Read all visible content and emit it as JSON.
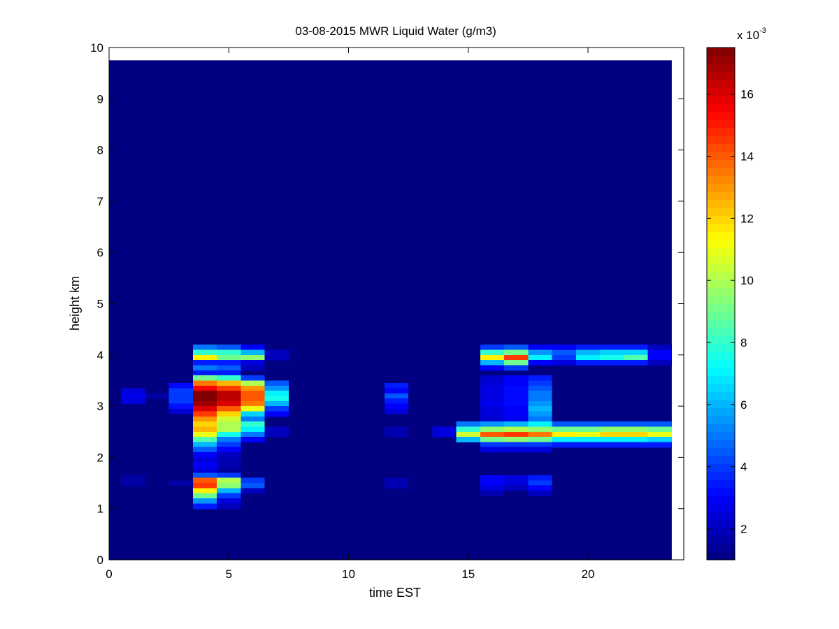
{
  "chart_data": {
    "type": "heatmap",
    "title": "03-08-2015 MWR Liquid Water (g/m3)",
    "xlabel": "time EST",
    "ylabel": "height km",
    "xlim": [
      0,
      24
    ],
    "ylim": [
      0,
      10
    ],
    "x_ticks": [
      0,
      5,
      10,
      15,
      20
    ],
    "y_ticks": [
      0,
      1,
      2,
      3,
      4,
      5,
      6,
      7,
      8,
      9,
      10
    ],
    "data_extent": {
      "x": [
        0,
        23.5
      ],
      "y": [
        0,
        9.75
      ]
    },
    "cell_width": 1,
    "colormap": "jet",
    "colorbar": {
      "min": 1,
      "max": 17.5,
      "exponent_label": "x 10",
      "exponent_power": "-3",
      "ticks": [
        2,
        4,
        6,
        8,
        10,
        12,
        14,
        16
      ]
    },
    "background_value": 1,
    "cells": [
      {
        "t": 1,
        "h": 3.3,
        "v": 2.5
      },
      {
        "t": 1,
        "h": 3.2,
        "v": 2.8
      },
      {
        "t": 1,
        "h": 3.1,
        "v": 2.5
      },
      {
        "t": 2,
        "h": 3.2,
        "v": 1.6
      },
      {
        "t": 3,
        "h": 3.4,
        "v": 3.2
      },
      {
        "t": 3,
        "h": 3.3,
        "v": 4.0
      },
      {
        "t": 3,
        "h": 3.2,
        "v": 4.0
      },
      {
        "t": 3,
        "h": 3.1,
        "v": 4.0
      },
      {
        "t": 3,
        "h": 3.0,
        "v": 3.3
      },
      {
        "t": 3,
        "h": 2.9,
        "v": 2.3
      },
      {
        "t": 1,
        "h": 1.6,
        "v": 1.6
      },
      {
        "t": 1,
        "h": 1.5,
        "v": 1.6
      },
      {
        "t": 3,
        "h": 1.5,
        "v": 1.6
      },
      {
        "t": 4,
        "h": 4.15,
        "v": 5.0
      },
      {
        "t": 4,
        "h": 4.05,
        "v": 8.0
      },
      {
        "t": 4,
        "h": 3.95,
        "v": 11.5
      },
      {
        "t": 4,
        "h": 3.85,
        "v": 3.5
      },
      {
        "t": 4,
        "h": 3.75,
        "v": 5.0
      },
      {
        "t": 4,
        "h": 3.65,
        "v": 3.5
      },
      {
        "t": 4,
        "h": 3.55,
        "v": 9.0
      },
      {
        "t": 4,
        "h": 3.45,
        "v": 13.5
      },
      {
        "t": 4,
        "h": 3.35,
        "v": 15.5
      },
      {
        "t": 4,
        "h": 3.25,
        "v": 17.5
      },
      {
        "t": 4,
        "h": 3.15,
        "v": 17.5
      },
      {
        "t": 4,
        "h": 3.05,
        "v": 17.0
      },
      {
        "t": 4,
        "h": 2.95,
        "v": 16.0
      },
      {
        "t": 4,
        "h": 2.85,
        "v": 14.5
      },
      {
        "t": 4,
        "h": 2.75,
        "v": 13.0
      },
      {
        "t": 4,
        "h": 2.65,
        "v": 12.0
      },
      {
        "t": 4,
        "h": 2.55,
        "v": 12.5
      },
      {
        "t": 4,
        "h": 2.45,
        "v": 11.0
      },
      {
        "t": 4,
        "h": 2.35,
        "v": 8.5
      },
      {
        "t": 4,
        "h": 2.25,
        "v": 6.0
      },
      {
        "t": 4,
        "h": 2.15,
        "v": 4.5
      },
      {
        "t": 4,
        "h": 2.05,
        "v": 3.0
      },
      {
        "t": 4,
        "h": 1.95,
        "v": 2.5
      },
      {
        "t": 4,
        "h": 1.85,
        "v": 3.0
      },
      {
        "t": 4,
        "h": 1.75,
        "v": 2.5
      },
      {
        "t": 4,
        "h": 1.65,
        "v": 4.5
      },
      {
        "t": 4,
        "h": 1.55,
        "v": 14.0
      },
      {
        "t": 4,
        "h": 1.45,
        "v": 14.5
      },
      {
        "t": 4,
        "h": 1.35,
        "v": 11.5
      },
      {
        "t": 4,
        "h": 1.25,
        "v": 9.0
      },
      {
        "t": 4,
        "h": 1.15,
        "v": 5.5
      },
      {
        "t": 4,
        "h": 1.05,
        "v": 3.5
      },
      {
        "t": 5,
        "h": 4.15,
        "v": 4.5
      },
      {
        "t": 5,
        "h": 4.05,
        "v": 8.0
      },
      {
        "t": 5,
        "h": 3.95,
        "v": 9.0
      },
      {
        "t": 5,
        "h": 3.85,
        "v": 3.5
      },
      {
        "t": 5,
        "h": 3.75,
        "v": 4.5
      },
      {
        "t": 5,
        "h": 3.65,
        "v": 3.5
      },
      {
        "t": 5,
        "h": 3.55,
        "v": 8.0
      },
      {
        "t": 5,
        "h": 3.45,
        "v": 12.5
      },
      {
        "t": 5,
        "h": 3.35,
        "v": 14.5
      },
      {
        "t": 5,
        "h": 3.25,
        "v": 16.5
      },
      {
        "t": 5,
        "h": 3.15,
        "v": 16.5
      },
      {
        "t": 5,
        "h": 3.05,
        "v": 16.0
      },
      {
        "t": 5,
        "h": 2.95,
        "v": 14.0
      },
      {
        "t": 5,
        "h": 2.85,
        "v": 12.0
      },
      {
        "t": 5,
        "h": 2.75,
        "v": 10.5
      },
      {
        "t": 5,
        "h": 2.65,
        "v": 10.0
      },
      {
        "t": 5,
        "h": 2.55,
        "v": 10.0
      },
      {
        "t": 5,
        "h": 2.45,
        "v": 7.5
      },
      {
        "t": 5,
        "h": 2.35,
        "v": 5.0
      },
      {
        "t": 5,
        "h": 2.25,
        "v": 4.0
      },
      {
        "t": 5,
        "h": 2.15,
        "v": 3.0
      },
      {
        "t": 5,
        "h": 2.05,
        "v": 2.0
      },
      {
        "t": 5,
        "h": 1.95,
        "v": 1.8
      },
      {
        "t": 5,
        "h": 1.85,
        "v": 1.8
      },
      {
        "t": 5,
        "h": 1.75,
        "v": 1.5
      },
      {
        "t": 5,
        "h": 1.65,
        "v": 4.0
      },
      {
        "t": 5,
        "h": 1.55,
        "v": 10.0
      },
      {
        "t": 5,
        "h": 1.45,
        "v": 9.5
      },
      {
        "t": 5,
        "h": 1.35,
        "v": 6.0
      },
      {
        "t": 5,
        "h": 1.25,
        "v": 4.0
      },
      {
        "t": 5,
        "h": 1.15,
        "v": 2.5
      },
      {
        "t": 5,
        "h": 1.05,
        "v": 2.0
      },
      {
        "t": 6,
        "h": 4.15,
        "v": 3.0
      },
      {
        "t": 6,
        "h": 4.05,
        "v": 6.0
      },
      {
        "t": 6,
        "h": 3.95,
        "v": 9.5
      },
      {
        "t": 6,
        "h": 3.85,
        "v": 2.5
      },
      {
        "t": 6,
        "h": 3.75,
        "v": 2.0
      },
      {
        "t": 6,
        "h": 3.55,
        "v": 4.0
      },
      {
        "t": 6,
        "h": 3.45,
        "v": 10.0
      },
      {
        "t": 6,
        "h": 3.35,
        "v": 13.0
      },
      {
        "t": 6,
        "h": 3.25,
        "v": 14.0
      },
      {
        "t": 6,
        "h": 3.15,
        "v": 14.0
      },
      {
        "t": 6,
        "h": 3.05,
        "v": 13.5
      },
      {
        "t": 6,
        "h": 2.95,
        "v": 11.0
      },
      {
        "t": 6,
        "h": 2.85,
        "v": 6.5
      },
      {
        "t": 6,
        "h": 2.75,
        "v": 5.0
      },
      {
        "t": 6,
        "h": 2.65,
        "v": 8.0
      },
      {
        "t": 6,
        "h": 2.55,
        "v": 7.0
      },
      {
        "t": 6,
        "h": 2.45,
        "v": 5.0
      },
      {
        "t": 6,
        "h": 2.35,
        "v": 3.0
      },
      {
        "t": 6,
        "h": 1.55,
        "v": 4.0
      },
      {
        "t": 6,
        "h": 1.45,
        "v": 4.5
      },
      {
        "t": 6,
        "h": 1.35,
        "v": 2.0
      },
      {
        "t": 7,
        "h": 4.05,
        "v": 2.0
      },
      {
        "t": 7,
        "h": 3.95,
        "v": 2.0
      },
      {
        "t": 7,
        "h": 3.45,
        "v": 4.5
      },
      {
        "t": 7,
        "h": 3.35,
        "v": 5.5
      },
      {
        "t": 7,
        "h": 3.25,
        "v": 7.0
      },
      {
        "t": 7,
        "h": 3.15,
        "v": 7.5
      },
      {
        "t": 7,
        "h": 3.05,
        "v": 6.0
      },
      {
        "t": 7,
        "h": 2.95,
        "v": 4.0
      },
      {
        "t": 7,
        "h": 2.85,
        "v": 3.0
      },
      {
        "t": 7,
        "h": 2.55,
        "v": 2.0
      },
      {
        "t": 7,
        "h": 2.45,
        "v": 2.0
      },
      {
        "t": 12,
        "h": 3.4,
        "v": 3.5
      },
      {
        "t": 12,
        "h": 3.3,
        "v": 3.0
      },
      {
        "t": 12,
        "h": 3.2,
        "v": 4.5
      },
      {
        "t": 12,
        "h": 3.1,
        "v": 3.5
      },
      {
        "t": 12,
        "h": 3.0,
        "v": 3.0
      },
      {
        "t": 12,
        "h": 2.9,
        "v": 2.5
      },
      {
        "t": 12,
        "h": 2.55,
        "v": 1.8
      },
      {
        "t": 12,
        "h": 2.45,
        "v": 1.8
      },
      {
        "t": 12,
        "h": 1.55,
        "v": 1.8
      },
      {
        "t": 12,
        "h": 1.45,
        "v": 1.8
      },
      {
        "t": 14,
        "h": 2.55,
        "v": 2.5
      },
      {
        "t": 14,
        "h": 2.45,
        "v": 2.5
      },
      {
        "t": 15,
        "h": 2.65,
        "v": 5.0
      },
      {
        "t": 15,
        "h": 2.55,
        "v": 8.0
      },
      {
        "t": 15,
        "h": 2.45,
        "v": 10.5
      },
      {
        "t": 15,
        "h": 2.35,
        "v": 6.0
      },
      {
        "t": 16,
        "h": 4.15,
        "v": 4.0
      },
      {
        "t": 16,
        "h": 4.05,
        "v": 8.0
      },
      {
        "t": 16,
        "h": 3.95,
        "v": 11.5
      },
      {
        "t": 16,
        "h": 3.85,
        "v": 6.0
      },
      {
        "t": 16,
        "h": 3.75,
        "v": 3.0
      },
      {
        "t": 16,
        "h": 3.55,
        "v": 2.2
      },
      {
        "t": 16,
        "h": 3.45,
        "v": 2.4
      },
      {
        "t": 16,
        "h": 3.35,
        "v": 2.6
      },
      {
        "t": 16,
        "h": 3.25,
        "v": 2.6
      },
      {
        "t": 16,
        "h": 3.15,
        "v": 2.6
      },
      {
        "t": 16,
        "h": 3.05,
        "v": 2.8
      },
      {
        "t": 16,
        "h": 2.95,
        "v": 2.5
      },
      {
        "t": 16,
        "h": 2.85,
        "v": 2.5
      },
      {
        "t": 16,
        "h": 2.75,
        "v": 2.3
      },
      {
        "t": 16,
        "h": 2.65,
        "v": 5.5
      },
      {
        "t": 16,
        "h": 2.55,
        "v": 9.5
      },
      {
        "t": 16,
        "h": 2.45,
        "v": 14.0
      },
      {
        "t": 16,
        "h": 2.35,
        "v": 9.0
      },
      {
        "t": 16,
        "h": 2.25,
        "v": 4.0
      },
      {
        "t": 16,
        "h": 2.15,
        "v": 2.5
      },
      {
        "t": 16,
        "h": 1.6,
        "v": 3.0
      },
      {
        "t": 16,
        "h": 1.5,
        "v": 3.0
      },
      {
        "t": 16,
        "h": 1.4,
        "v": 2.5
      },
      {
        "t": 16,
        "h": 1.3,
        "v": 1.8
      },
      {
        "t": 17,
        "h": 4.15,
        "v": 4.5
      },
      {
        "t": 17,
        "h": 4.05,
        "v": 9.0
      },
      {
        "t": 17,
        "h": 3.95,
        "v": 14.5
      },
      {
        "t": 17,
        "h": 3.85,
        "v": 9.0
      },
      {
        "t": 17,
        "h": 3.75,
        "v": 4.0
      },
      {
        "t": 17,
        "h": 3.55,
        "v": 3.0
      },
      {
        "t": 17,
        "h": 3.45,
        "v": 3.0
      },
      {
        "t": 17,
        "h": 3.35,
        "v": 3.2
      },
      {
        "t": 17,
        "h": 3.25,
        "v": 3.2
      },
      {
        "t": 17,
        "h": 3.15,
        "v": 3.2
      },
      {
        "t": 17,
        "h": 3.05,
        "v": 3.2
      },
      {
        "t": 17,
        "h": 2.95,
        "v": 3.0
      },
      {
        "t": 17,
        "h": 2.85,
        "v": 3.0
      },
      {
        "t": 17,
        "h": 2.75,
        "v": 2.8
      },
      {
        "t": 17,
        "h": 2.65,
        "v": 6.0
      },
      {
        "t": 17,
        "h": 2.55,
        "v": 10.0
      },
      {
        "t": 17,
        "h": 2.45,
        "v": 14.5
      },
      {
        "t": 17,
        "h": 2.35,
        "v": 9.5
      },
      {
        "t": 17,
        "h": 2.25,
        "v": 4.0
      },
      {
        "t": 17,
        "h": 2.15,
        "v": 2.5
      },
      {
        "t": 17,
        "h": 1.6,
        "v": 2.5
      },
      {
        "t": 17,
        "h": 1.5,
        "v": 2.5
      },
      {
        "t": 17,
        "h": 1.4,
        "v": 2.0
      },
      {
        "t": 18,
        "h": 4.15,
        "v": 3.0
      },
      {
        "t": 18,
        "h": 4.05,
        "v": 5.5
      },
      {
        "t": 18,
        "h": 3.95,
        "v": 7.0
      },
      {
        "t": 18,
        "h": 3.85,
        "v": 3.0
      },
      {
        "t": 18,
        "h": 3.55,
        "v": 3.5
      },
      {
        "t": 18,
        "h": 3.45,
        "v": 4.0
      },
      {
        "t": 18,
        "h": 3.35,
        "v": 4.5
      },
      {
        "t": 18,
        "h": 3.25,
        "v": 5.0
      },
      {
        "t": 18,
        "h": 3.15,
        "v": 5.0
      },
      {
        "t": 18,
        "h": 3.05,
        "v": 5.5
      },
      {
        "t": 18,
        "h": 2.95,
        "v": 6.0
      },
      {
        "t": 18,
        "h": 2.85,
        "v": 5.5
      },
      {
        "t": 18,
        "h": 2.75,
        "v": 5.0
      },
      {
        "t": 18,
        "h": 2.65,
        "v": 7.0
      },
      {
        "t": 18,
        "h": 2.55,
        "v": 9.5
      },
      {
        "t": 18,
        "h": 2.45,
        "v": 13.5
      },
      {
        "t": 18,
        "h": 2.35,
        "v": 9.0
      },
      {
        "t": 18,
        "h": 2.25,
        "v": 4.0
      },
      {
        "t": 18,
        "h": 2.15,
        "v": 2.5
      },
      {
        "t": 18,
        "h": 1.6,
        "v": 3.5
      },
      {
        "t": 18,
        "h": 1.5,
        "v": 4.0
      },
      {
        "t": 18,
        "h": 1.4,
        "v": 3.0
      },
      {
        "t": 18,
        "h": 1.3,
        "v": 2.0
      },
      {
        "t": 19,
        "h": 4.15,
        "v": 3.0
      },
      {
        "t": 19,
        "h": 4.05,
        "v": 4.5
      },
      {
        "t": 19,
        "h": 3.95,
        "v": 4.0
      },
      {
        "t": 19,
        "h": 3.85,
        "v": 2.5
      },
      {
        "t": 19,
        "h": 2.65,
        "v": 4.5
      },
      {
        "t": 19,
        "h": 2.55,
        "v": 9.0
      },
      {
        "t": 19,
        "h": 2.45,
        "v": 11.5
      },
      {
        "t": 19,
        "h": 2.35,
        "v": 7.0
      },
      {
        "t": 19,
        "h": 2.25,
        "v": 3.5
      },
      {
        "t": 20,
        "h": 4.15,
        "v": 3.5
      },
      {
        "t": 20,
        "h": 4.05,
        "v": 6.0
      },
      {
        "t": 20,
        "h": 3.95,
        "v": 7.0
      },
      {
        "t": 20,
        "h": 3.85,
        "v": 3.5
      },
      {
        "t": 20,
        "h": 2.65,
        "v": 4.5
      },
      {
        "t": 20,
        "h": 2.55,
        "v": 9.0
      },
      {
        "t": 20,
        "h": 2.45,
        "v": 11.0
      },
      {
        "t": 20,
        "h": 2.35,
        "v": 7.0
      },
      {
        "t": 20,
        "h": 2.25,
        "v": 3.5
      },
      {
        "t": 21,
        "h": 4.15,
        "v": 3.5
      },
      {
        "t": 21,
        "h": 4.05,
        "v": 6.5
      },
      {
        "t": 21,
        "h": 3.95,
        "v": 7.5
      },
      {
        "t": 21,
        "h": 3.85,
        "v": 3.5
      },
      {
        "t": 21,
        "h": 2.65,
        "v": 4.5
      },
      {
        "t": 21,
        "h": 2.55,
        "v": 9.5
      },
      {
        "t": 21,
        "h": 2.45,
        "v": 12.0
      },
      {
        "t": 21,
        "h": 2.35,
        "v": 7.0
      },
      {
        "t": 21,
        "h": 2.25,
        "v": 3.5
      },
      {
        "t": 22,
        "h": 4.15,
        "v": 3.5
      },
      {
        "t": 22,
        "h": 4.05,
        "v": 6.5
      },
      {
        "t": 22,
        "h": 3.95,
        "v": 8.5
      },
      {
        "t": 22,
        "h": 3.85,
        "v": 3.5
      },
      {
        "t": 22,
        "h": 2.65,
        "v": 4.5
      },
      {
        "t": 22,
        "h": 2.55,
        "v": 9.5
      },
      {
        "t": 22,
        "h": 2.45,
        "v": 12.0
      },
      {
        "t": 22,
        "h": 2.35,
        "v": 7.0
      },
      {
        "t": 22,
        "h": 2.25,
        "v": 3.5
      },
      {
        "t": 23,
        "h": 4.15,
        "v": 2.0
      },
      {
        "t": 23,
        "h": 4.05,
        "v": 3.0
      },
      {
        "t": 23,
        "h": 3.95,
        "v": 3.0
      },
      {
        "t": 23,
        "h": 3.85,
        "v": 2.0
      },
      {
        "t": 23,
        "h": 2.65,
        "v": 4.5
      },
      {
        "t": 23,
        "h": 2.55,
        "v": 9.0
      },
      {
        "t": 23,
        "h": 2.45,
        "v": 11.0
      },
      {
        "t": 23,
        "h": 2.35,
        "v": 6.5
      },
      {
        "t": 23,
        "h": 2.25,
        "v": 3.5
      }
    ]
  }
}
